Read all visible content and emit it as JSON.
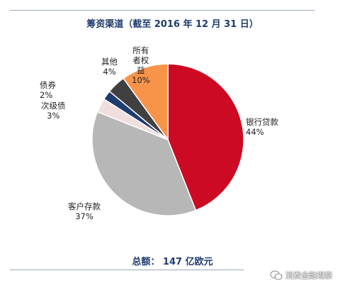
{
  "chart_data": {
    "type": "pie",
    "title": "筹资渠道（截至 2016 年 12 月 31 日）",
    "slices": [
      {
        "label_lines": [
          "银行贷款"
        ],
        "pct_label": "44%",
        "value": 44,
        "color": "#cc0a23"
      },
      {
        "label_lines": [
          "客户存款"
        ],
        "pct_label": "37%",
        "value": 37,
        "color": "#b7b7b7"
      },
      {
        "label_lines": [
          "次级债"
        ],
        "pct_label": "3%",
        "value": 3,
        "color": "#f0dede"
      },
      {
        "label_lines": [
          "债券"
        ],
        "pct_label": "2%",
        "value": 2,
        "color": "#1f3c6e"
      },
      {
        "label_lines": [
          "其他"
        ],
        "pct_label": "4%",
        "value": 4,
        "color": "#404040"
      },
      {
        "label_lines": [
          "所有",
          "者权",
          "益"
        ],
        "pct_label": "10%",
        "value": 10,
        "color": "#f7944a"
      }
    ],
    "start_angle_deg": 0,
    "direction": "clockwise",
    "total_label": "总额： 147 亿欧元"
  },
  "watermark": {
    "text": "消费金融观察"
  }
}
